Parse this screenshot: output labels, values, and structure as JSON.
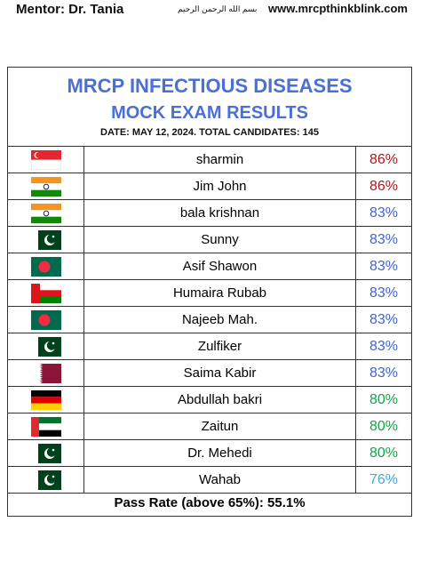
{
  "header": {
    "mentor": "Mentor: Dr. Tania",
    "calligraphy": "بسم الله الرحمن الرحيم",
    "website": "www.mrcpthinkblink.com"
  },
  "title": "MRCP INFECTIOUS DISEASES",
  "subtitle": "MOCK EXAM RESULTS",
  "info": "DATE: MAY 12, 2024. TOTAL CANDIDATES: 145",
  "table": {
    "rows": [
      {
        "name": "sharmin",
        "score": "86%",
        "color": "#b3141b"
      },
      {
        "name": "Jim John",
        "score": "86%",
        "color": "#b3141b"
      },
      {
        "name": "bala krishnan",
        "score": "83%",
        "color": "#3f63d4"
      },
      {
        "name": "Sunny",
        "score": "83%",
        "color": "#3f63d4"
      },
      {
        "name": "Asif Shawon",
        "score": "83%",
        "color": "#3f63d4"
      },
      {
        "name": "Humaira Rubab",
        "score": "83%",
        "color": "#3f63d4"
      },
      {
        "name": "Najeeb Mah.",
        "score": "83%",
        "color": "#3f63d4"
      },
      {
        "name": "Zulfiker",
        "score": "83%",
        "color": "#3f63d4"
      },
      {
        "name": "Saima Kabir",
        "score": "83%",
        "color": "#3f63d4"
      },
      {
        "name": "Abdullah bakri",
        "score": "80%",
        "color": "#15a34a"
      },
      {
        "name": "Zaitun",
        "score": "80%",
        "color": "#15a34a"
      },
      {
        "name": "Dr. Mehedi",
        "score": "80%",
        "color": "#15a34a"
      },
      {
        "name": "Wahab",
        "score": "76%",
        "color": "#3ba9e0"
      }
    ]
  },
  "footer": "Pass Rate (above 65%): 55.1%"
}
